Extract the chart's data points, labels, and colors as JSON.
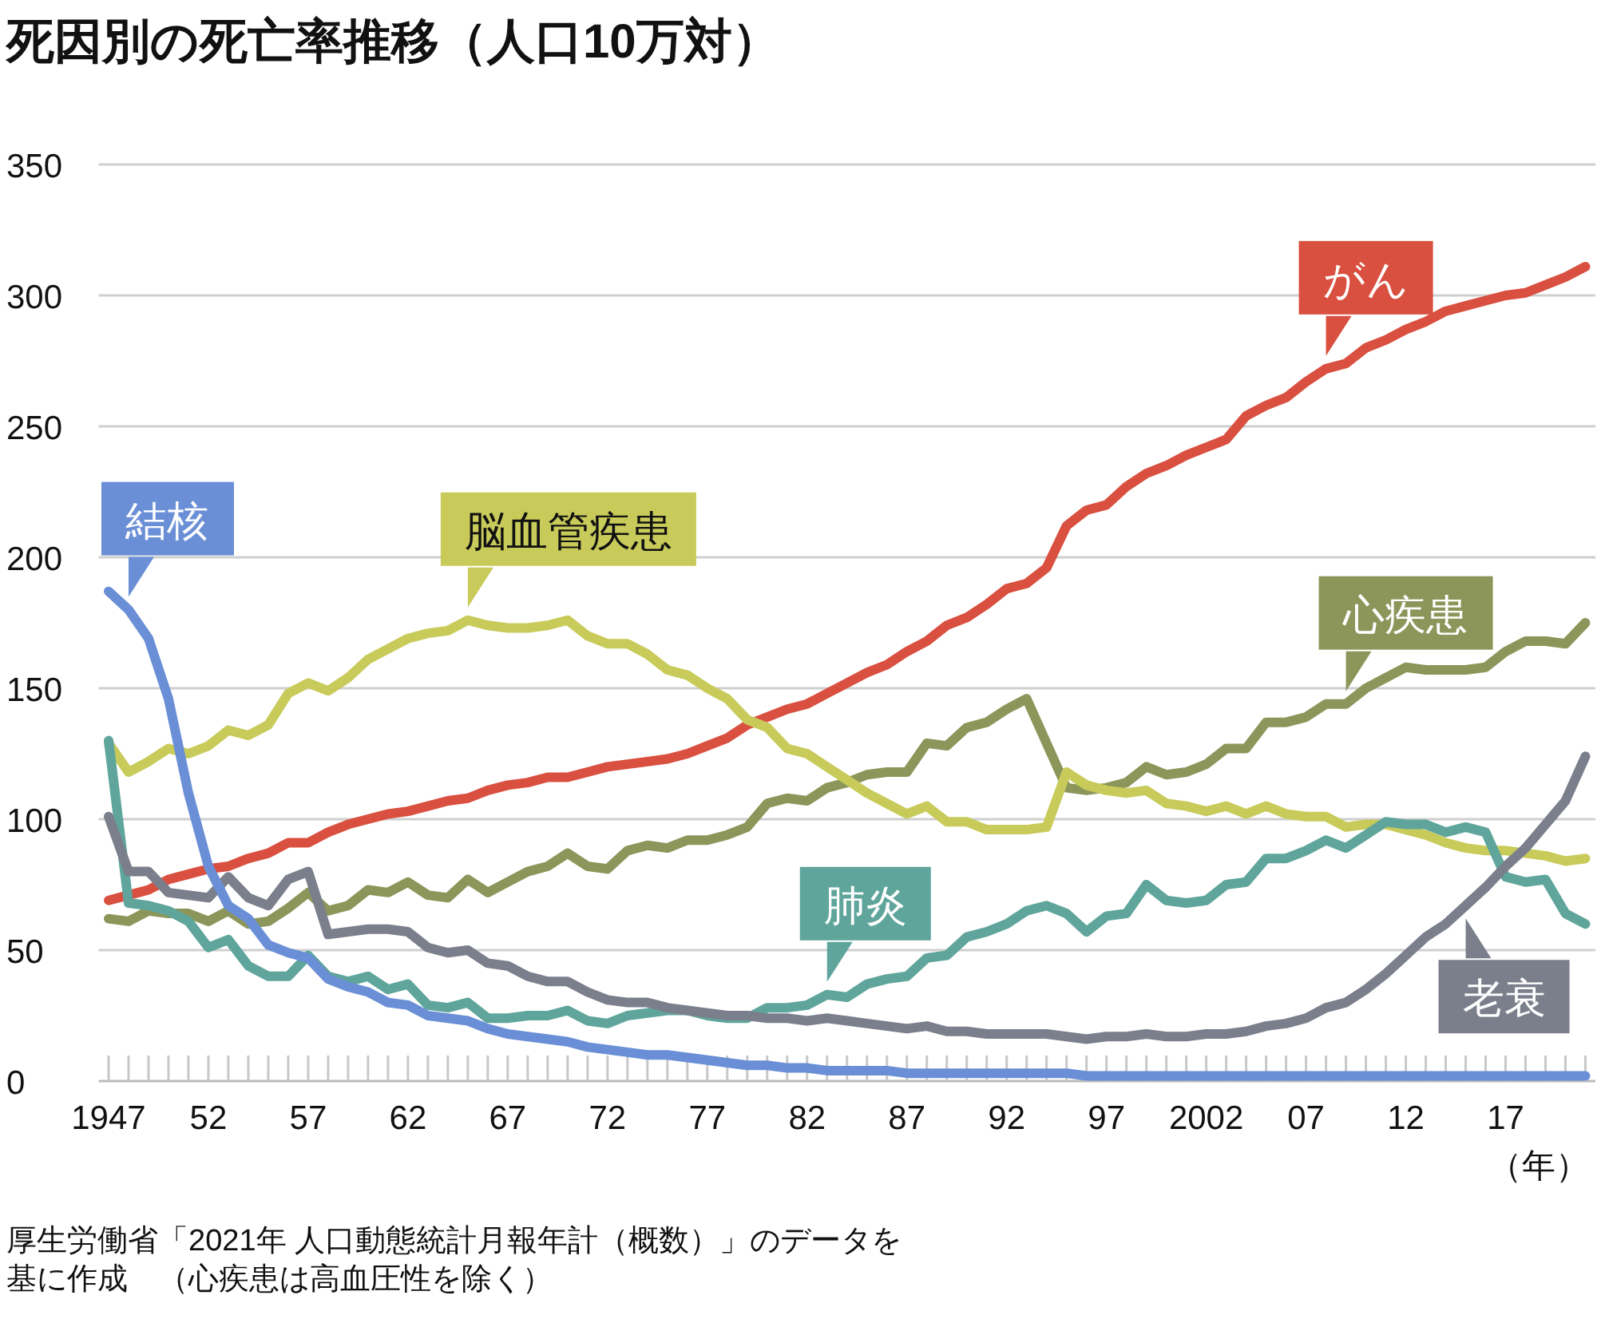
{
  "chart_data": {
    "type": "line",
    "title": "死因別の死亡率推移（人口10万対）",
    "xlabel": "（年）",
    "annotations": [
      "厚生労働省「2021年 人口動態統計月報年計（概数）」のデータを基に作成　（心疾患は高血圧性を除く）"
    ],
    "x": [
      1947,
      1948,
      1949,
      1950,
      1951,
      1952,
      1953,
      1954,
      1955,
      1956,
      1957,
      1958,
      1959,
      1960,
      1961,
      1962,
      1963,
      1964,
      1965,
      1966,
      1967,
      1968,
      1969,
      1970,
      1971,
      1972,
      1973,
      1974,
      1975,
      1976,
      1977,
      1978,
      1979,
      1980,
      1981,
      1982,
      1983,
      1984,
      1985,
      1986,
      1987,
      1988,
      1989,
      1990,
      1991,
      1992,
      1993,
      1994,
      1995,
      1996,
      1997,
      1998,
      1999,
      2000,
      2001,
      2002,
      2003,
      2004,
      2005,
      2006,
      2007,
      2008,
      2009,
      2010,
      2011,
      2012,
      2013,
      2014,
      2015,
      2016,
      2017,
      2018,
      2019,
      2020,
      2021
    ],
    "xlim": [
      1946.5,
      2021.5
    ],
    "xticks": [
      {
        "value": 1947,
        "label": "1947"
      },
      {
        "value": 1948,
        "label": null
      },
      {
        "value": 1949,
        "label": null
      },
      {
        "value": 1950,
        "label": null
      },
      {
        "value": 1951,
        "label": null
      },
      {
        "value": 1952,
        "label": "52"
      },
      {
        "value": 1953,
        "label": null
      },
      {
        "value": 1954,
        "label": null
      },
      {
        "value": 1955,
        "label": null
      },
      {
        "value": 1956,
        "label": null
      },
      {
        "value": 1957,
        "label": "57"
      },
      {
        "value": 1958,
        "label": null
      },
      {
        "value": 1959,
        "label": null
      },
      {
        "value": 1960,
        "label": null
      },
      {
        "value": 1961,
        "label": null
      },
      {
        "value": 1962,
        "label": "62"
      },
      {
        "value": 1963,
        "label": null
      },
      {
        "value": 1964,
        "label": null
      },
      {
        "value": 1965,
        "label": null
      },
      {
        "value": 1966,
        "label": null
      },
      {
        "value": 1967,
        "label": "67"
      },
      {
        "value": 1968,
        "label": null
      },
      {
        "value": 1969,
        "label": null
      },
      {
        "value": 1970,
        "label": null
      },
      {
        "value": 1971,
        "label": null
      },
      {
        "value": 1972,
        "label": "72"
      },
      {
        "value": 1973,
        "label": null
      },
      {
        "value": 1974,
        "label": null
      },
      {
        "value": 1975,
        "label": null
      },
      {
        "value": 1976,
        "label": null
      },
      {
        "value": 1977,
        "label": "77"
      },
      {
        "value": 1978,
        "label": null
      },
      {
        "value": 1979,
        "label": null
      },
      {
        "value": 1980,
        "label": null
      },
      {
        "value": 1981,
        "label": null
      },
      {
        "value": 1982,
        "label": "82"
      },
      {
        "value": 1983,
        "label": null
      },
      {
        "value": 1984,
        "label": null
      },
      {
        "value": 1985,
        "label": null
      },
      {
        "value": 1986,
        "label": null
      },
      {
        "value": 1987,
        "label": "87"
      },
      {
        "value": 1988,
        "label": null
      },
      {
        "value": 1989,
        "label": null
      },
      {
        "value": 1990,
        "label": null
      },
      {
        "value": 1991,
        "label": null
      },
      {
        "value": 1992,
        "label": "92"
      },
      {
        "value": 1993,
        "label": null
      },
      {
        "value": 1994,
        "label": null
      },
      {
        "value": 1995,
        "label": null
      },
      {
        "value": 1996,
        "label": null
      },
      {
        "value": 1997,
        "label": "97"
      },
      {
        "value": 1998,
        "label": null
      },
      {
        "value": 1999,
        "label": null
      },
      {
        "value": 2000,
        "label": null
      },
      {
        "value": 2001,
        "label": null
      },
      {
        "value": 2002,
        "label": "2002"
      },
      {
        "value": 2003,
        "label": null
      },
      {
        "value": 2004,
        "label": null
      },
      {
        "value": 2005,
        "label": null
      },
      {
        "value": 2006,
        "label": null
      },
      {
        "value": 2007,
        "label": "07"
      },
      {
        "value": 2008,
        "label": null
      },
      {
        "value": 2009,
        "label": null
      },
      {
        "value": 2010,
        "label": null
      },
      {
        "value": 2011,
        "label": null
      },
      {
        "value": 2012,
        "label": "12"
      },
      {
        "value": 2013,
        "label": null
      },
      {
        "value": 2014,
        "label": null
      },
      {
        "value": 2015,
        "label": null
      },
      {
        "value": 2016,
        "label": null
      },
      {
        "value": 2017,
        "label": "17"
      },
      {
        "value": 2018,
        "label": null
      },
      {
        "value": 2019,
        "label": null
      },
      {
        "value": 2020,
        "label": null
      },
      {
        "value": 2021,
        "label": null
      }
    ],
    "ylim": [
      0,
      350
    ],
    "yticks": [
      0,
      50,
      100,
      150,
      200,
      250,
      300,
      350
    ],
    "grid": "y",
    "marker": "none",
    "line_style": "solid",
    "series": [
      {
        "name": "がん",
        "color": "#d95040",
        "values": [
          69,
          71,
          73,
          77,
          79,
          81,
          82,
          85,
          87,
          91,
          91,
          95,
          98,
          100,
          102,
          103,
          105,
          107,
          108,
          111,
          113,
          114,
          116,
          116,
          118,
          120,
          121,
          122,
          123,
          125,
          128,
          131,
          136,
          139,
          142,
          144,
          148,
          152,
          156,
          159,
          164,
          168,
          174,
          177,
          182,
          188,
          190,
          196,
          212,
          218,
          220,
          227,
          232,
          235,
          239,
          242,
          245,
          254,
          258,
          261,
          267,
          272,
          274,
          280,
          283,
          287,
          290,
          294,
          296,
          298,
          300,
          301,
          304,
          307,
          311
        ]
      },
      {
        "name": "心疾患",
        "color": "#8c965a",
        "values": [
          62,
          61,
          65,
          64,
          64,
          61,
          65,
          60,
          61,
          66,
          72,
          65,
          67,
          73,
          72,
          76,
          71,
          70,
          77,
          72,
          76,
          80,
          82,
          87,
          82,
          81,
          88,
          90,
          89,
          92,
          92,
          94,
          97,
          106,
          108,
          107,
          112,
          114,
          117,
          118,
          118,
          129,
          128,
          135,
          137,
          142,
          146,
          129,
          112,
          111,
          112,
          114,
          120,
          117,
          118,
          121,
          127,
          127,
          137,
          137,
          139,
          144,
          144,
          150,
          154,
          158,
          157,
          157,
          157,
          158,
          164,
          168,
          168,
          167,
          175
        ]
      },
      {
        "name": "脳血管疾患",
        "color": "#c8cb5a",
        "values": [
          129,
          118,
          122,
          127,
          125,
          128,
          134,
          132,
          136,
          148,
          152,
          149,
          154,
          161,
          165,
          169,
          171,
          172,
          176,
          174,
          173,
          173,
          174,
          176,
          170,
          167,
          167,
          163,
          157,
          155,
          150,
          146,
          138,
          135,
          127,
          125,
          120,
          115,
          110,
          106,
          102,
          105,
          99,
          99,
          96,
          96,
          96,
          97,
          118,
          113,
          111,
          110,
          111,
          106,
          105,
          103,
          105,
          102,
          105,
          102,
          101,
          101,
          97,
          98,
          98,
          96,
          94,
          91,
          89,
          88,
          88,
          87,
          86,
          84,
          85
        ]
      },
      {
        "name": "肺炎",
        "color": "#5fa59b",
        "values": [
          130,
          68,
          67,
          65,
          61,
          51,
          54,
          44,
          40,
          40,
          48,
          40,
          38,
          40,
          35,
          37,
          29,
          28,
          30,
          24,
          24,
          25,
          25,
          27,
          23,
          22,
          25,
          26,
          27,
          27,
          25,
          24,
          24,
          28,
          28,
          29,
          33,
          32,
          37,
          39,
          40,
          47,
          48,
          55,
          57,
          60,
          65,
          67,
          64,
          57,
          63,
          64,
          75,
          69,
          68,
          69,
          75,
          76,
          85,
          85,
          88,
          92,
          89,
          94,
          99,
          98,
          98,
          95,
          97,
          95,
          78,
          76,
          77,
          64,
          60
        ]
      },
      {
        "name": "老衰",
        "color": "#7b7f8c",
        "values": [
          101,
          80,
          80,
          72,
          71,
          70,
          78,
          70,
          67,
          77,
          80,
          56,
          57,
          58,
          58,
          57,
          51,
          49,
          50,
          45,
          44,
          40,
          38,
          38,
          34,
          31,
          30,
          30,
          28,
          27,
          26,
          25,
          25,
          24,
          24,
          23,
          24,
          23,
          22,
          21,
          20,
          21,
          19,
          19,
          18,
          18,
          18,
          18,
          17,
          16,
          17,
          17,
          18,
          17,
          17,
          18,
          18,
          19,
          21,
          22,
          24,
          28,
          30,
          35,
          41,
          48,
          55,
          60,
          67,
          74,
          82,
          89,
          98,
          107,
          124
        ]
      },
      {
        "name": "結核",
        "color": "#6a8fd6",
        "values": [
          187,
          180,
          169,
          146,
          110,
          82,
          67,
          62,
          52,
          49,
          47,
          39,
          36,
          34,
          30,
          29,
          25,
          24,
          23,
          20,
          18,
          17,
          16,
          15,
          13,
          12,
          11,
          10,
          10,
          9,
          8,
          7,
          6,
          6,
          5,
          5,
          4,
          4,
          4,
          4,
          3,
          3,
          3,
          3,
          3,
          3,
          3,
          3,
          3,
          2,
          2,
          2,
          2,
          2,
          2,
          2,
          2,
          2,
          2,
          2,
          2,
          2,
          2,
          2,
          2,
          2,
          2,
          2,
          2,
          2,
          2,
          2,
          2,
          2,
          2
        ]
      }
    ]
  }
}
